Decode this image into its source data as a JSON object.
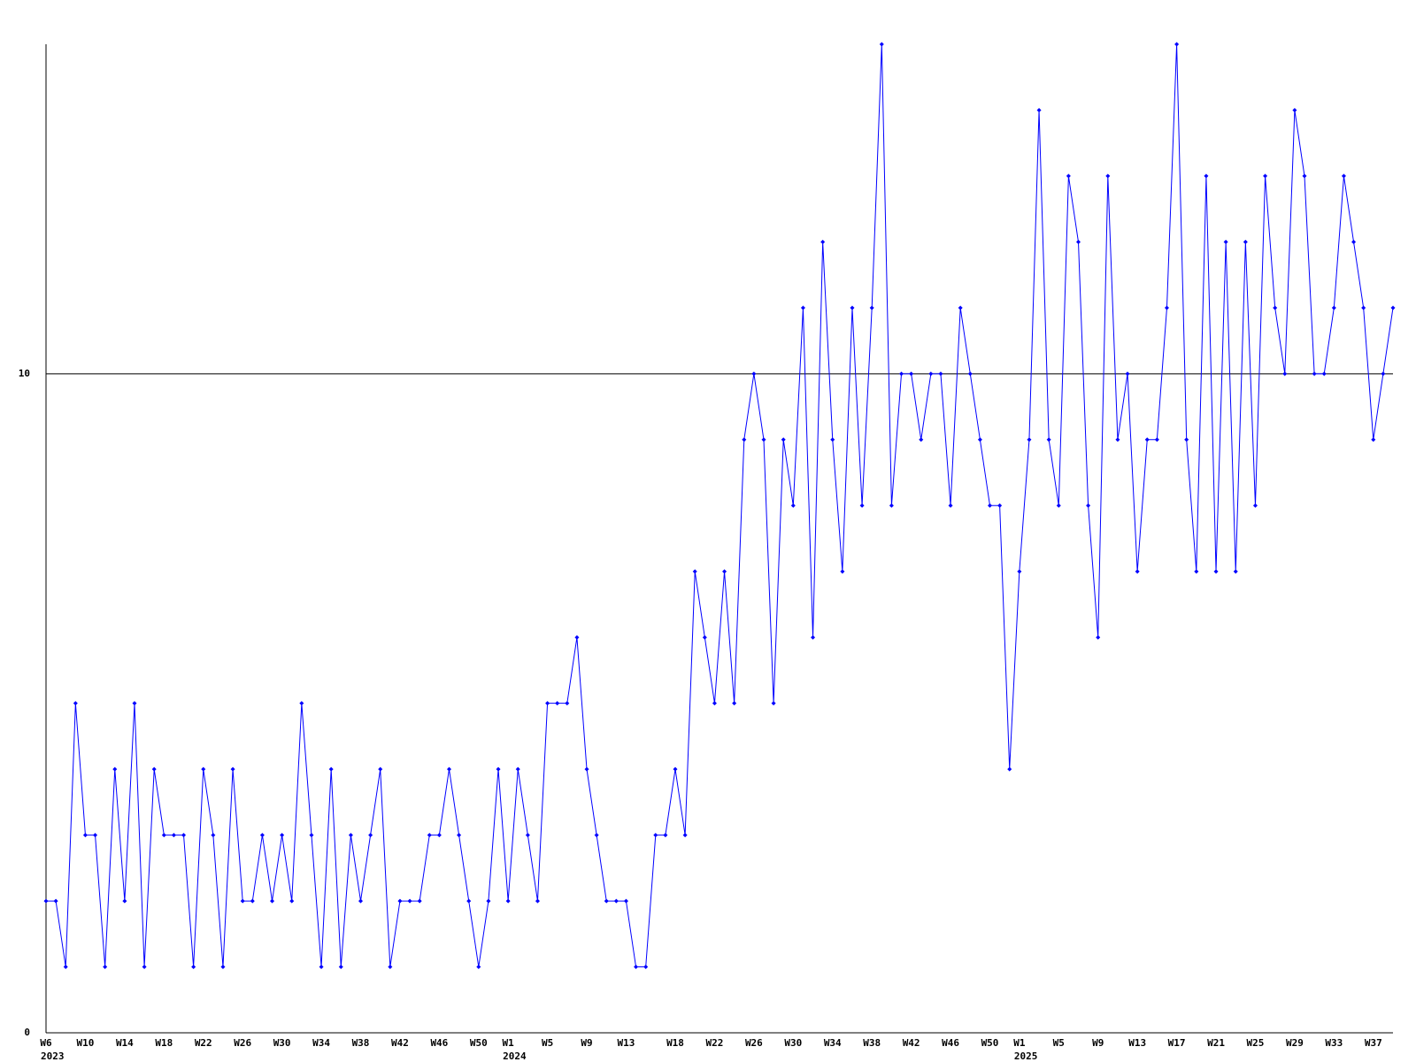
{
  "chart_data": {
    "type": "line",
    "categories": [
      "W6",
      null,
      null,
      null,
      "W10",
      null,
      null,
      null,
      "W14",
      null,
      null,
      null,
      "W18",
      null,
      null,
      null,
      "W22",
      null,
      null,
      null,
      "W26",
      null,
      null,
      null,
      "W30",
      null,
      null,
      null,
      "W34",
      null,
      null,
      null,
      "W38",
      null,
      null,
      null,
      "W42",
      null,
      null,
      null,
      "W46",
      null,
      null,
      null,
      "W50",
      null,
      null,
      "W1",
      null,
      null,
      null,
      "W5",
      null,
      null,
      null,
      "W9",
      null,
      null,
      null,
      "W13",
      null,
      null,
      null,
      null,
      "W18",
      null,
      null,
      null,
      "W22",
      null,
      null,
      null,
      "W26",
      null,
      null,
      null,
      "W30",
      null,
      null,
      null,
      "W34",
      null,
      null,
      null,
      "W38",
      null,
      null,
      null,
      "W42",
      null,
      null,
      null,
      "W46",
      null,
      null,
      null,
      "W50",
      null,
      null,
      "W1",
      null,
      null,
      null,
      "W5",
      null,
      null,
      null,
      "W9",
      null,
      null,
      null,
      "W13",
      null,
      null,
      null,
      "W17",
      null,
      null,
      null,
      "W21",
      null,
      null,
      null,
      "W25",
      null,
      null,
      null,
      "W29",
      null,
      null,
      null,
      "W33",
      null,
      null,
      null,
      "W37",
      null,
      null
    ],
    "year_labels": [
      {
        "label": "2023",
        "category_index": 0
      },
      {
        "label": "2024",
        "category_index": 47
      },
      {
        "label": "2025",
        "category_index": 99
      }
    ],
    "series": [
      {
        "color": "#0000ff",
        "values": [
          2,
          2,
          1,
          5,
          3,
          3,
          1,
          4,
          2,
          5,
          1,
          4,
          3,
          3,
          3,
          1,
          4,
          3,
          1,
          4,
          2,
          2,
          3,
          2,
          3,
          2,
          5,
          3,
          1,
          4,
          1,
          3,
          2,
          3,
          4,
          1,
          2,
          2,
          2,
          3,
          3,
          4,
          3,
          2,
          1,
          2,
          4,
          2,
          4,
          3,
          2,
          5,
          5,
          5,
          6,
          4,
          3,
          2,
          2,
          2,
          1,
          1,
          3,
          3,
          4,
          3,
          7,
          6,
          5,
          7,
          5,
          9,
          10,
          9,
          5,
          9,
          8,
          11,
          6,
          12,
          9,
          7,
          11,
          8,
          11,
          15,
          8,
          10,
          10,
          9,
          10,
          10,
          8,
          11,
          10,
          9,
          8,
          8,
          4,
          7,
          9,
          14,
          9,
          8,
          13,
          12,
          8,
          6,
          13,
          9,
          10,
          7,
          9,
          9,
          11,
          15,
          9,
          7,
          13,
          7,
          12,
          7,
          12,
          8,
          13,
          11,
          10,
          14,
          13,
          10,
          10,
          11,
          13,
          12,
          11,
          9,
          10,
          11
        ]
      }
    ],
    "ylim": [
      0,
      15
    ],
    "yticks": [
      0,
      10
    ],
    "grid": true
  }
}
